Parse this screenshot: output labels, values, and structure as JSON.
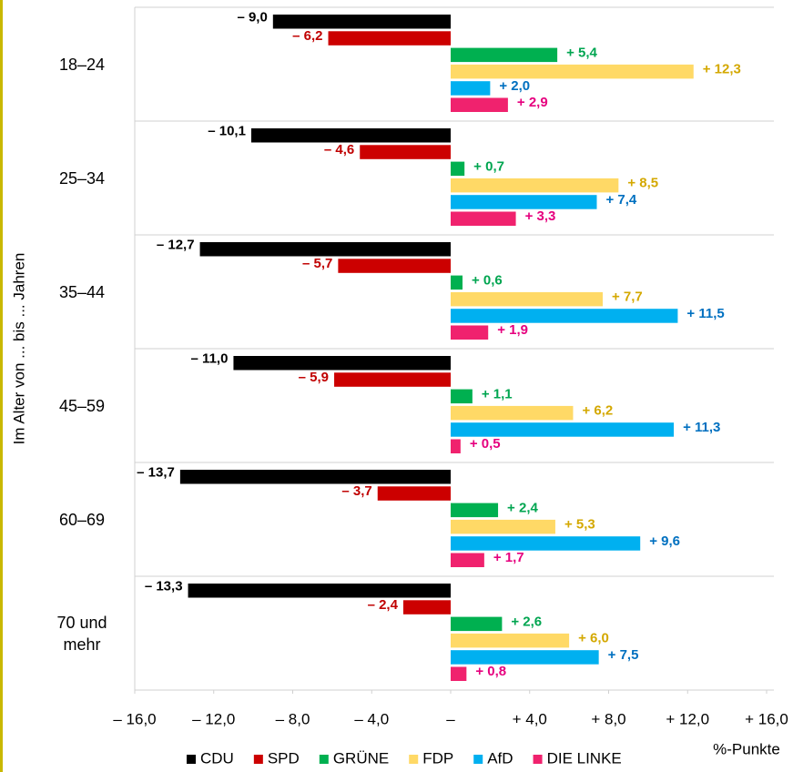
{
  "chart_data": {
    "type": "hbar",
    "y_label": "Im Alter von ... bis ... Jahren",
    "x_label": "%-Punkte",
    "categories": [
      "18–24",
      "25–34",
      "35–44",
      "45–59",
      "60–69",
      "70 und mehr"
    ],
    "series": [
      {
        "name": "CDU",
        "color": "#000000",
        "label_color": "#000000",
        "values": [
          -9.0,
          -10.1,
          -12.7,
          -11.0,
          -13.7,
          -13.3
        ],
        "value_labels": [
          "– 9,0",
          "– 10,1",
          "– 12,7",
          "– 11,0",
          "– 13,7",
          "– 13,3"
        ]
      },
      {
        "name": "SPD",
        "color": "#cc0000",
        "label_color": "#c00000",
        "values": [
          -6.2,
          -4.6,
          -5.7,
          -5.9,
          -3.7,
          -2.4
        ],
        "value_labels": [
          "– 6,2",
          "– 4,6",
          "– 5,7",
          "– 5,9",
          "– 3,7",
          "– 2,4"
        ]
      },
      {
        "name": "GRÜNE",
        "color": "#00b050",
        "label_color": "#00a550",
        "values": [
          5.4,
          0.7,
          0.6,
          1.1,
          2.4,
          2.6
        ],
        "value_labels": [
          "+ 5,4",
          "+ 0,7",
          "+ 0,6",
          "+ 1,1",
          "+ 2,4",
          "+ 2,6"
        ]
      },
      {
        "name": "FDP",
        "color": "#ffd966",
        "label_color": "#d4a800",
        "values": [
          12.3,
          8.5,
          7.7,
          6.2,
          5.3,
          6.0
        ],
        "value_labels": [
          "+ 12,3",
          "+ 8,5",
          "+ 7,7",
          "+ 6,2",
          "+ 5,3",
          "+ 6,0"
        ]
      },
      {
        "name": "AfD",
        "color": "#00b0f0",
        "label_color": "#0070c0",
        "values": [
          2.0,
          7.4,
          11.5,
          11.3,
          9.6,
          7.5
        ],
        "value_labels": [
          "+ 2,0",
          "+ 7,4",
          "+ 11,5",
          "+ 11,3",
          "+ 9,6",
          "+ 7,5"
        ]
      },
      {
        "name": "DIE LINKE",
        "color": "#f0226e",
        "label_color": "#e6007e",
        "values": [
          2.9,
          3.3,
          1.9,
          0.5,
          1.7,
          0.8
        ],
        "value_labels": [
          "+ 2,9",
          "+ 3,3",
          "+ 1,9",
          "+ 0,5",
          "+ 1,7",
          "+ 0,8"
        ]
      }
    ],
    "xlim": [
      -16,
      16
    ],
    "xticks": [
      {
        "value": -16,
        "label": "– 16,0"
      },
      {
        "value": -12,
        "label": "– 12,0"
      },
      {
        "value": -8,
        "label": "– 8,0"
      },
      {
        "value": -4,
        "label": "– 4,0"
      },
      {
        "value": 0,
        "label": "–"
      },
      {
        "value": 4,
        "label": "+ 4,0"
      },
      {
        "value": 8,
        "label": "+ 8,0"
      },
      {
        "value": 12,
        "label": "+ 12,0"
      },
      {
        "value": 16,
        "label": "+ 16,0"
      }
    ],
    "legend": "bottom"
  }
}
